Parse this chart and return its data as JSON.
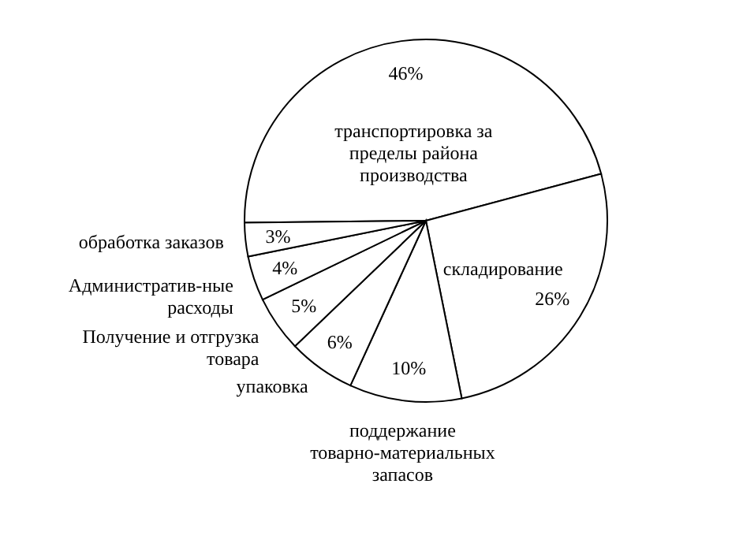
{
  "chart_data": {
    "type": "pie",
    "categories": [
      "транспортировка за пределы района производства",
      "складирование",
      "поддержание товарно-материальных запасов",
      "упаковка",
      "Получение и отгрузка товара",
      "Административ-ные расходы",
      "обработка заказов"
    ],
    "values": [
      46,
      26,
      10,
      6,
      5,
      4,
      3
    ],
    "value_labels": [
      "46%",
      "26%",
      "10%",
      "6%",
      "5%",
      "4%",
      "3%"
    ],
    "colors": [
      "#ffffff",
      "#ffffff",
      "#ffffff",
      "#ffffff",
      "#ffffff",
      "#ffffff",
      "#ffffff"
    ]
  }
}
